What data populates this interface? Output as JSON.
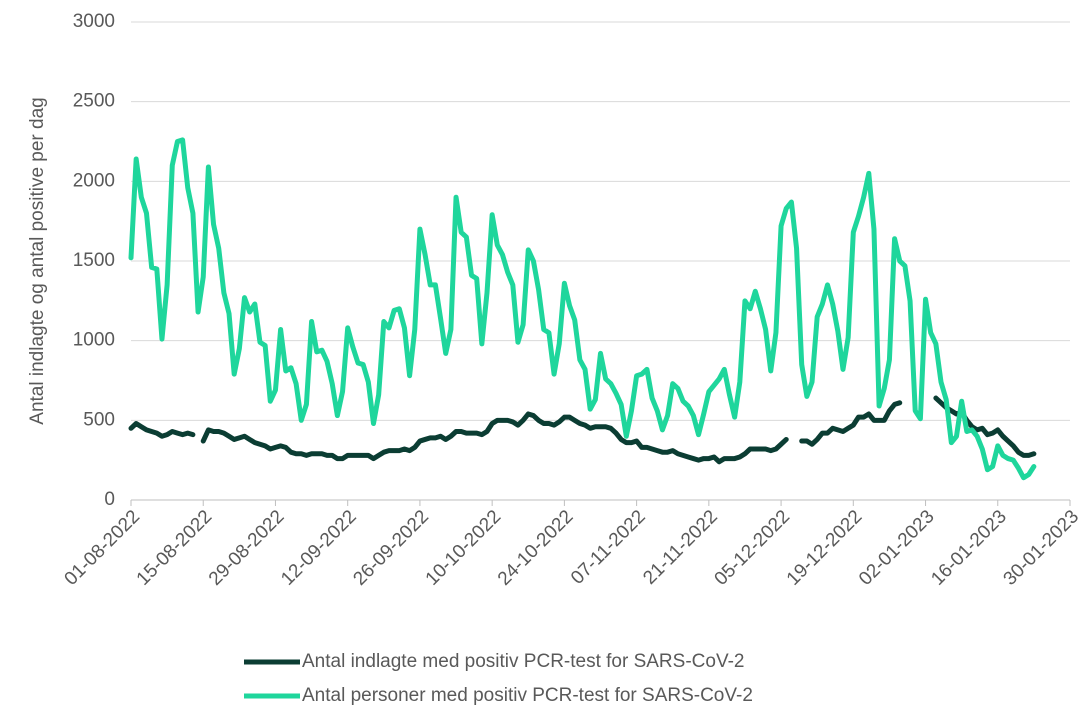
{
  "chart_data": {
    "type": "line",
    "ylabel": "Antal indlagte og antal positive per dag",
    "categories": [
      "01-08-2022",
      null,
      null,
      null,
      null,
      null,
      null,
      null,
      null,
      null,
      null,
      null,
      null,
      null,
      "15-08-2022",
      null,
      null,
      null,
      null,
      null,
      null,
      null,
      null,
      null,
      null,
      null,
      null,
      null,
      "29-08-2022",
      null,
      null,
      null,
      null,
      null,
      null,
      null,
      null,
      null,
      null,
      null,
      null,
      null,
      "12-09-2022",
      null,
      null,
      null,
      null,
      null,
      null,
      null,
      null,
      null,
      null,
      null,
      null,
      null,
      "26-09-2022",
      null,
      null,
      null,
      null,
      null,
      null,
      null,
      null,
      null,
      null,
      null,
      null,
      null,
      "10-10-2022",
      null,
      null,
      null,
      null,
      null,
      null,
      null,
      null,
      null,
      null,
      null,
      null,
      null,
      "24-10-2022",
      null,
      null,
      null,
      null,
      null,
      null,
      null,
      null,
      null,
      null,
      null,
      null,
      null,
      "07-11-2022",
      null,
      null,
      null,
      null,
      null,
      null,
      null,
      null,
      null,
      null,
      null,
      null,
      null,
      "21-11-2022",
      null,
      null,
      null,
      null,
      null,
      null,
      null,
      null,
      null,
      null,
      null,
      null,
      null,
      "05-12-2022",
      null,
      null,
      null,
      null,
      null,
      null,
      null,
      null,
      null,
      null,
      null,
      null,
      null,
      "19-12-2022",
      null,
      null,
      null,
      null,
      null,
      null,
      null,
      null,
      null,
      null,
      null,
      null,
      null,
      "02-01-2023",
      null,
      null,
      null,
      null,
      null,
      null,
      null,
      null,
      null,
      null,
      null,
      null,
      null,
      "16-01-2023",
      null,
      null,
      null,
      null,
      null,
      null,
      null,
      null,
      null,
      null,
      null,
      null,
      null,
      "30-01-2023"
    ],
    "series": [
      {
        "name": "Antal indlagte med positiv PCR-test for SARS-CoV-2",
        "color": "#0b3d33",
        "values": [
          450,
          480,
          460,
          440,
          430,
          420,
          400,
          410,
          430,
          420,
          410,
          420,
          410,
          null,
          370,
          440,
          430,
          430,
          420,
          400,
          380,
          390,
          400,
          380,
          360,
          350,
          340,
          320,
          330,
          340,
          330,
          300,
          290,
          290,
          280,
          290,
          290,
          290,
          280,
          280,
          260,
          260,
          280,
          280,
          280,
          280,
          280,
          260,
          280,
          300,
          310,
          310,
          310,
          320,
          310,
          330,
          370,
          380,
          390,
          390,
          400,
          380,
          400,
          430,
          430,
          420,
          420,
          420,
          410,
          430,
          480,
          500,
          500,
          500,
          490,
          470,
          500,
          540,
          530,
          500,
          480,
          480,
          470,
          490,
          520,
          520,
          500,
          480,
          470,
          450,
          460,
          460,
          460,
          450,
          420,
          380,
          360,
          360,
          370,
          330,
          330,
          320,
          310,
          300,
          300,
          310,
          290,
          280,
          270,
          260,
          250,
          260,
          260,
          270,
          240,
          260,
          260,
          260,
          270,
          290,
          320,
          320,
          320,
          320,
          310,
          320,
          350,
          380,
          null,
          null,
          370,
          370,
          350,
          380,
          420,
          420,
          450,
          440,
          430,
          450,
          470,
          520,
          520,
          540,
          500,
          500,
          500,
          560,
          600,
          610,
          null,
          null,
          null,
          null,
          null,
          null,
          640,
          610,
          580,
          560,
          540,
          550,
          500,
          460,
          440,
          450,
          410,
          420,
          440,
          400,
          370,
          340,
          300,
          280,
          280,
          290,
          null,
          null,
          null,
          null,
          null,
          null,
          null
        ]
      },
      {
        "name": "Antal personer med positiv PCR-test for SARS-CoV-2",
        "color": "#1fd69c",
        "values": [
          1520,
          2140,
          1900,
          1800,
          1460,
          1450,
          1010,
          1350,
          2100,
          2250,
          2260,
          1960,
          1800,
          1180,
          1400,
          2090,
          1730,
          1580,
          1300,
          1170,
          790,
          950,
          1270,
          1180,
          1230,
          990,
          970,
          620,
          690,
          1070,
          810,
          830,
          730,
          500,
          600,
          1120,
          930,
          940,
          870,
          730,
          530,
          680,
          1080,
          960,
          860,
          850,
          740,
          480,
          660,
          1120,
          1080,
          1190,
          1200,
          1080,
          780,
          1070,
          1700,
          1540,
          1350,
          1350,
          1140,
          920,
          1070,
          1900,
          1680,
          1650,
          1410,
          1390,
          980,
          1300,
          1790,
          1600,
          1540,
          1430,
          1350,
          990,
          1100,
          1570,
          1500,
          1320,
          1070,
          1050,
          790,
          980,
          1360,
          1220,
          1130,
          880,
          820,
          570,
          630,
          920,
          760,
          730,
          670,
          600,
          400,
          560,
          780,
          790,
          820,
          640,
          560,
          440,
          530,
          730,
          700,
          620,
          590,
          530,
          410,
          540,
          680,
          720,
          760,
          820,
          660,
          520,
          740,
          1250,
          1200,
          1310,
          1200,
          1070,
          810,
          1050,
          1720,
          1830,
          1870,
          1580,
          850,
          650,
          740,
          1150,
          1230,
          1350,
          1230,
          1060,
          820,
          1020,
          1680,
          1780,
          1900,
          2050,
          1700,
          590,
          700,
          880,
          1640,
          1500,
          1470,
          1250,
          560,
          510,
          1260,
          1050,
          980,
          740,
          630,
          360,
          400,
          620,
          430,
          440,
          400,
          320,
          190,
          210,
          340,
          280,
          260,
          250,
          200,
          140,
          160,
          210,
          null,
          null,
          null,
          null,
          null,
          null,
          null
        ]
      }
    ],
    "ylim": [
      0,
      3000
    ],
    "yticks": [
      0,
      500,
      1000,
      1500,
      2000,
      2500,
      3000
    ],
    "grid": true
  }
}
